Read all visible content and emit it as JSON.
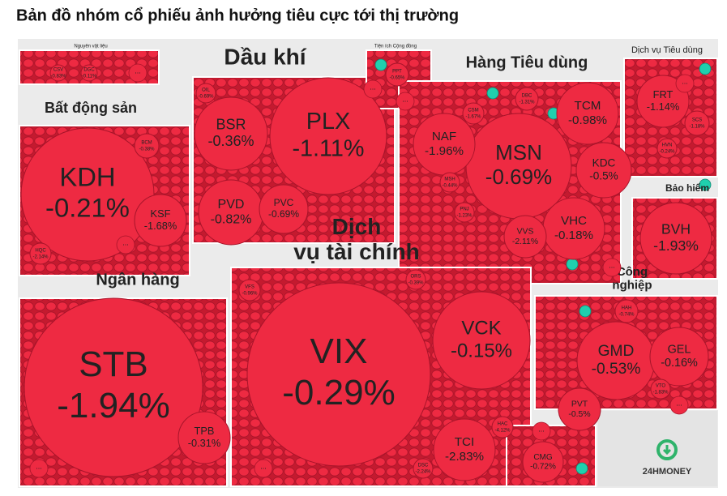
{
  "chart_data": {
    "type": "treemap",
    "title": "Bản đồ nhóm cổ phiếu ảnh hưởng tiêu cực tới thị trường",
    "more_label": "...",
    "logo": "24HMONEY",
    "groups": [
      {
        "name": "Nguyên vật liệu",
        "stocks": [
          {
            "name": "CSV",
            "value": -0.83,
            "value_label": "-0.83%"
          },
          {
            "name": "DGC",
            "value": -0.11,
            "value_label": "-0.11%"
          }
        ]
      },
      {
        "name": "Dầu khí",
        "stocks": [
          {
            "name": "PLX",
            "value": -1.11,
            "value_label": "-1.11%"
          },
          {
            "name": "BSR",
            "value": -0.36,
            "value_label": "-0.36%"
          },
          {
            "name": "PVD",
            "value": -0.82,
            "value_label": "-0.82%"
          },
          {
            "name": "PVC",
            "value": -0.69,
            "value_label": "-0.69%"
          },
          {
            "name": "OIL",
            "value": -0.69,
            "value_label": "-0.69%"
          }
        ]
      },
      {
        "name": "Tiện ích Cộng đồng",
        "stocks": [
          {
            "name": "PPT",
            "value": -0.65,
            "value_label": "-0.65%"
          }
        ]
      },
      {
        "name": "Hàng Tiêu dùng",
        "stocks": [
          {
            "name": "MSN",
            "value": -0.69,
            "value_label": "-0.69%"
          },
          {
            "name": "NAF",
            "value": -1.96,
            "value_label": "-1.96%"
          },
          {
            "name": "TCM",
            "value": -0.98,
            "value_label": "-0.98%"
          },
          {
            "name": "KDC",
            "value": -0.5,
            "value_label": "-0.5%"
          },
          {
            "name": "VHC",
            "value": -0.18,
            "value_label": "-0.18%"
          },
          {
            "name": "DBC",
            "value": -1.31,
            "value_label": "-1.31%"
          },
          {
            "name": "CSM",
            "value": -1.67,
            "value_label": "-1.67%"
          },
          {
            "name": "MSH",
            "value": -0.44,
            "value_label": "-0.44%"
          },
          {
            "name": "PNJ",
            "value": -1.23,
            "value_label": "-1.23%"
          },
          {
            "name": "VVS",
            "value": -2.11,
            "value_label": "-2.11%"
          }
        ]
      },
      {
        "name": "Dịch vụ Tiêu dùng",
        "stocks": [
          {
            "name": "FRT",
            "value": -1.14,
            "value_label": "-1.14%"
          },
          {
            "name": "SCS",
            "value": -1.18,
            "value_label": "-1.18%"
          },
          {
            "name": "HVN",
            "value": -0.24,
            "value_label": "-0.24%"
          }
        ]
      },
      {
        "name": "Bất động sản",
        "stocks": [
          {
            "name": "KDH",
            "value": -0.21,
            "value_label": "-0.21%"
          },
          {
            "name": "KSF",
            "value": -1.68,
            "value_label": "-1.68%"
          },
          {
            "name": "BCM",
            "value": -0.38,
            "value_label": "-0.38%"
          },
          {
            "name": "HQC",
            "value": -2.14,
            "value_label": "-2.14%"
          }
        ]
      },
      {
        "name": "Bảo hiểm",
        "stocks": [
          {
            "name": "BVH",
            "value": -1.93,
            "value_label": "-1.93%"
          }
        ]
      },
      {
        "name": "Ngân hàng",
        "stocks": [
          {
            "name": "STB",
            "value": -1.94,
            "value_label": "-1.94%"
          },
          {
            "name": "TPB",
            "value": -0.31,
            "value_label": "-0.31%"
          }
        ]
      },
      {
        "name": "Dịch vụ tài chính",
        "stocks": [
          {
            "name": "VIX",
            "value": -0.29,
            "value_label": "-0.29%"
          },
          {
            "name": "VCK",
            "value": -0.15,
            "value_label": "-0.15%"
          },
          {
            "name": "TCI",
            "value": -2.83,
            "value_label": "-2.83%"
          },
          {
            "name": "VFS",
            "value": -0.96,
            "value_label": "-0.96%"
          },
          {
            "name": "ORS",
            "value": -0.39,
            "value_label": "-0.39%"
          },
          {
            "name": "HAC",
            "value": -4.12,
            "value_label": "-4.12%"
          },
          {
            "name": "DSC",
            "value": -2.24,
            "value_label": "-2.24%"
          }
        ]
      },
      {
        "name": "Công nghiệp",
        "stocks": [
          {
            "name": "GMD",
            "value": -0.53,
            "value_label": "-0.53%"
          },
          {
            "name": "GEL",
            "value": -0.16,
            "value_label": "-0.16%"
          },
          {
            "name": "PVT",
            "value": -0.5,
            "value_label": "-0.5%"
          },
          {
            "name": "HAH",
            "value": -0.74,
            "value_label": "-0.74%"
          },
          {
            "name": "VTO",
            "value": -1.83,
            "value_label": "-1.83%"
          },
          {
            "name": "CMG",
            "value": -0.72,
            "value_label": "-0.72%"
          }
        ]
      }
    ]
  }
}
